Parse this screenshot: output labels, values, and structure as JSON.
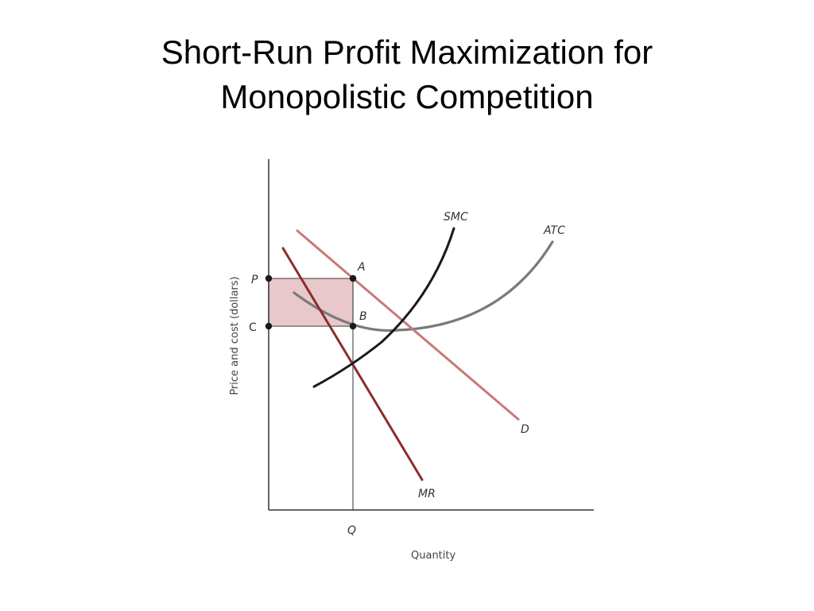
{
  "slide": {
    "title_line1": "Short-Run Profit Maximization for",
    "title_line2": "Monopolistic Competition"
  },
  "diagram": {
    "x_axis_label": "Quantity",
    "y_axis_label": "Price and cost (dollars)",
    "points": {
      "price": "P",
      "cost": "C",
      "quantity": "Q",
      "point_a": "A",
      "point_b": "B"
    },
    "curves": {
      "smc": "SMC",
      "atc": "ATC",
      "demand": "D",
      "marginal_revenue": "MR"
    },
    "colors": {
      "axis": "#333333",
      "smc": "#1a1a1a",
      "atc": "#7a7a7a",
      "demand": "#c87a78",
      "marginal_revenue": "#8b2e2e",
      "profit_area": "#e8c8ca",
      "guide": "#555555"
    }
  }
}
